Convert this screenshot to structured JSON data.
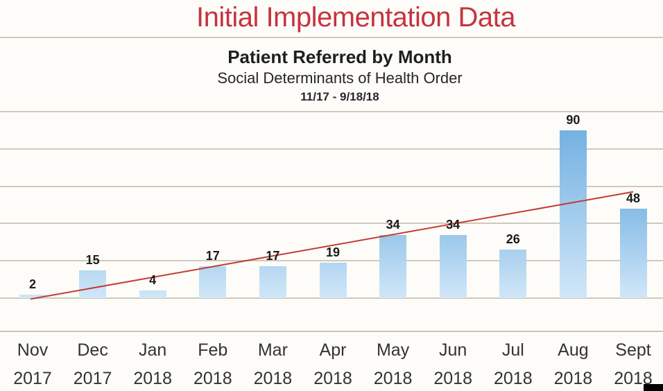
{
  "page": {
    "title": "Initial Implementation Data"
  },
  "chart_data": {
    "type": "bar",
    "title": "Patient Referred by Month",
    "subtitle": "Social Determinants of Health Order",
    "date_range": "11/17 - 9/18/18",
    "categories": [
      "Nov",
      "Dec",
      "Jan",
      "Feb",
      "Mar",
      "Apr",
      "May",
      "Jun",
      "Jul",
      "Aug",
      "Sept"
    ],
    "years": [
      "2017",
      "2017",
      "2018",
      "2018",
      "2018",
      "2018",
      "2018",
      "2018",
      "2018",
      "2018",
      "2018"
    ],
    "values": [
      2,
      15,
      4,
      17,
      17,
      19,
      34,
      34,
      26,
      90,
      48
    ],
    "xlabel": "",
    "ylabel": "",
    "ylim": [
      0,
      100
    ],
    "gridline_step": 20,
    "grid": true,
    "legend": false,
    "y_axis_labels_visible": false,
    "trendline": {
      "type": "linear",
      "start_value": -0.5,
      "end_value": 57
    }
  },
  "colors": {
    "page_title": "#c63340",
    "divider": "#cfccbf",
    "gridline": "#cdc9bc",
    "bar_top_max": "#74b1e2",
    "bar_bottom": "#cfe6f7",
    "trendline": "#c23b35",
    "value_label": "#1b1b1b",
    "axis_label": "#333333",
    "corner_mark": "#000000",
    "background": "#fdfcf8"
  }
}
